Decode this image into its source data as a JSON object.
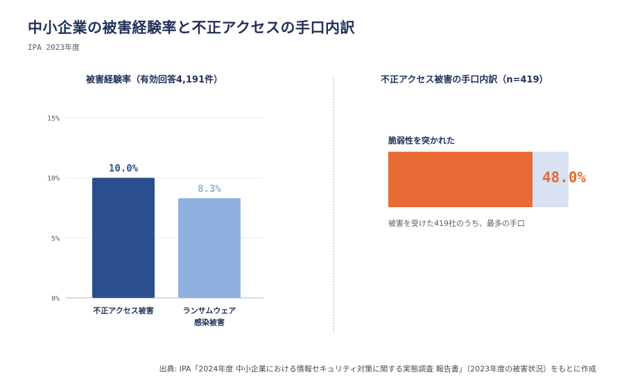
{
  "header": {
    "title": "中小企業の被害経験率と不正アクセスの手口内訳",
    "subtitle": "IPA 2023年度"
  },
  "left_panel": {
    "title": "被害経験率（有効回答4,191件）"
  },
  "right_panel": {
    "title": "不正アクセス被害の手口内訳（n=419）",
    "method_label": "脆弱性を突かれた",
    "value_label": "48.0%",
    "note": "被害を受けた419社のうち、最多の手口"
  },
  "source": "出典: IPA「2024年度 中小企業における情報セキュリティ対策に関する実態調査 報告書」（2023年度の被害状況）をもとに作成",
  "colors": {
    "primary_navy": "#2b4f8e",
    "light_blue": "#8fafdf",
    "orange": "#e86a35",
    "track_light_blue": "#d9e2f3",
    "title_navy": "#1f3158"
  },
  "chart_data": [
    {
      "type": "bar",
      "title": "被害経験率（有効回答4,191件）",
      "categories": [
        "不正アクセス被害",
        "ランサムウェア\n感染被害"
      ],
      "values": [
        10.0,
        8.3
      ],
      "value_labels": [
        "10.0%",
        "8.3%"
      ],
      "bar_colors": [
        "#2b4f8e",
        "#8fafdf"
      ],
      "yticks": [
        "0%",
        "5%",
        "10%",
        "15%"
      ],
      "ylim": [
        0,
        15
      ],
      "grid": true
    },
    {
      "type": "bar",
      "orientation": "horizontal",
      "title": "不正アクセス被害の手口内訳（n=419）",
      "categories": [
        "脆弱性を突かれた"
      ],
      "values": [
        48.0
      ],
      "value_labels": [
        "48.0%"
      ],
      "xlim": [
        0,
        60
      ]
    }
  ]
}
